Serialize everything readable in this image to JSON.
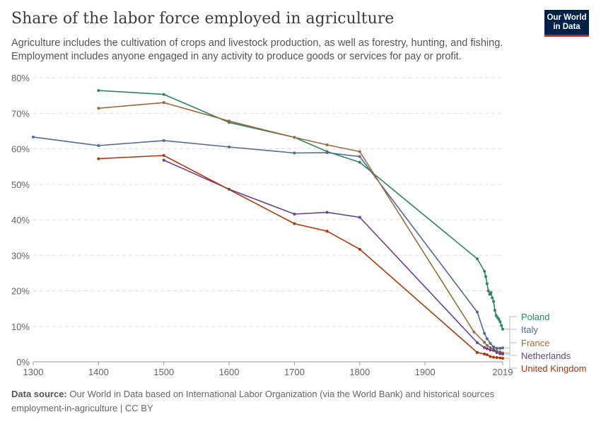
{
  "header": {
    "title": "Share of the labor force employed in agriculture",
    "subtitle": "Agriculture includes the cultivation of crops and livestock production, as well as forestry, hunting, and fishing. Employment includes anyone engaged in any activity to produce goods or services for pay or profit.",
    "logo": "Our World in Data"
  },
  "footer": {
    "source_label": "Data source:",
    "source": "Our World in Data based on International Labor Organization (via the World Bank) and historical sources",
    "slug": "employment-in-agriculture | CC BY"
  },
  "chart_data": {
    "type": "line",
    "title": "Share of the labor force employed in agriculture",
    "xlim": [
      1300,
      2019
    ],
    "ylim": [
      0,
      80
    ],
    "grid": "horizontal dashed",
    "x_ticks": [
      "1300",
      "1400",
      "1500",
      "1600",
      "1700",
      "1800",
      "1900",
      "2019"
    ],
    "y_ticks": [
      "0%",
      "10%",
      "20%",
      "30%",
      "40%",
      "50%",
      "60%",
      "70%",
      "80%"
    ],
    "legend_placement": "right (line end labels)",
    "series": [
      {
        "name": "Poland",
        "color": "#2c8465",
        "points": [
          [
            1400,
            76.4
          ],
          [
            1500,
            75.3
          ],
          [
            1600,
            67.4
          ],
          [
            1700,
            63.2
          ],
          [
            1750,
            59.2
          ],
          [
            1800,
            56.2
          ],
          [
            1980,
            29.0
          ],
          [
            1991,
            25.5
          ],
          [
            1993,
            24
          ],
          [
            1995,
            22
          ],
          [
            1997,
            20
          ],
          [
            1999,
            19
          ],
          [
            2001,
            19.5
          ],
          [
            2003,
            18
          ],
          [
            2005,
            17
          ],
          [
            2007,
            14.5
          ],
          [
            2009,
            13
          ],
          [
            2011,
            12.5
          ],
          [
            2013,
            12
          ],
          [
            2015,
            11.3
          ],
          [
            2017,
            10.2
          ],
          [
            2019,
            9.2
          ]
        ]
      },
      {
        "name": "Italy",
        "color": "#4c6a9c",
        "points": [
          [
            1300,
            63.3
          ],
          [
            1400,
            60.9
          ],
          [
            1500,
            62.3
          ],
          [
            1600,
            60.5
          ],
          [
            1700,
            58.8
          ],
          [
            1750,
            58.9
          ],
          [
            1800,
            57.8
          ],
          [
            1980,
            14.0
          ],
          [
            1991,
            8.0
          ],
          [
            1995,
            6.5
          ],
          [
            2000,
            5.2
          ],
          [
            2005,
            4.2
          ],
          [
            2010,
            3.8
          ],
          [
            2015,
            3.8
          ],
          [
            2019,
            3.9
          ]
        ]
      },
      {
        "name": "France",
        "color": "#9a6c3c",
        "points": [
          [
            1400,
            71.4
          ],
          [
            1500,
            73.0
          ],
          [
            1600,
            67.8
          ],
          [
            1700,
            63.2
          ],
          [
            1750,
            61.1
          ],
          [
            1800,
            59.2
          ],
          [
            1975,
            8.4
          ],
          [
            1991,
            5.5
          ],
          [
            1995,
            4.6
          ],
          [
            2000,
            4.0
          ],
          [
            2005,
            3.5
          ],
          [
            2010,
            3.0
          ],
          [
            2015,
            2.8
          ],
          [
            2019,
            2.5
          ]
        ]
      },
      {
        "name": "Netherlands",
        "color": "#6d3e91",
        "points": [
          [
            1500,
            56.8
          ],
          [
            1600,
            48.6
          ],
          [
            1700,
            41.6
          ],
          [
            1750,
            42.1
          ],
          [
            1800,
            40.7
          ],
          [
            1980,
            5.4
          ],
          [
            1991,
            4.0
          ],
          [
            1995,
            3.7
          ],
          [
            2000,
            3.3
          ],
          [
            2005,
            3.2
          ],
          [
            2010,
            2.6
          ],
          [
            2015,
            2.3
          ],
          [
            2019,
            2.2
          ]
        ]
      },
      {
        "name": "United Kingdom",
        "color": "#b13507",
        "points": [
          [
            1400,
            57.2
          ],
          [
            1500,
            58.1
          ],
          [
            1700,
            38.9
          ],
          [
            1750,
            36.8
          ],
          [
            1800,
            31.7
          ],
          [
            1980,
            2.6
          ],
          [
            1991,
            2.2
          ],
          [
            1995,
            2.0
          ],
          [
            2000,
            1.5
          ],
          [
            2005,
            1.3
          ],
          [
            2010,
            1.2
          ],
          [
            2015,
            1.1
          ],
          [
            2019,
            1.0
          ]
        ]
      }
    ]
  }
}
